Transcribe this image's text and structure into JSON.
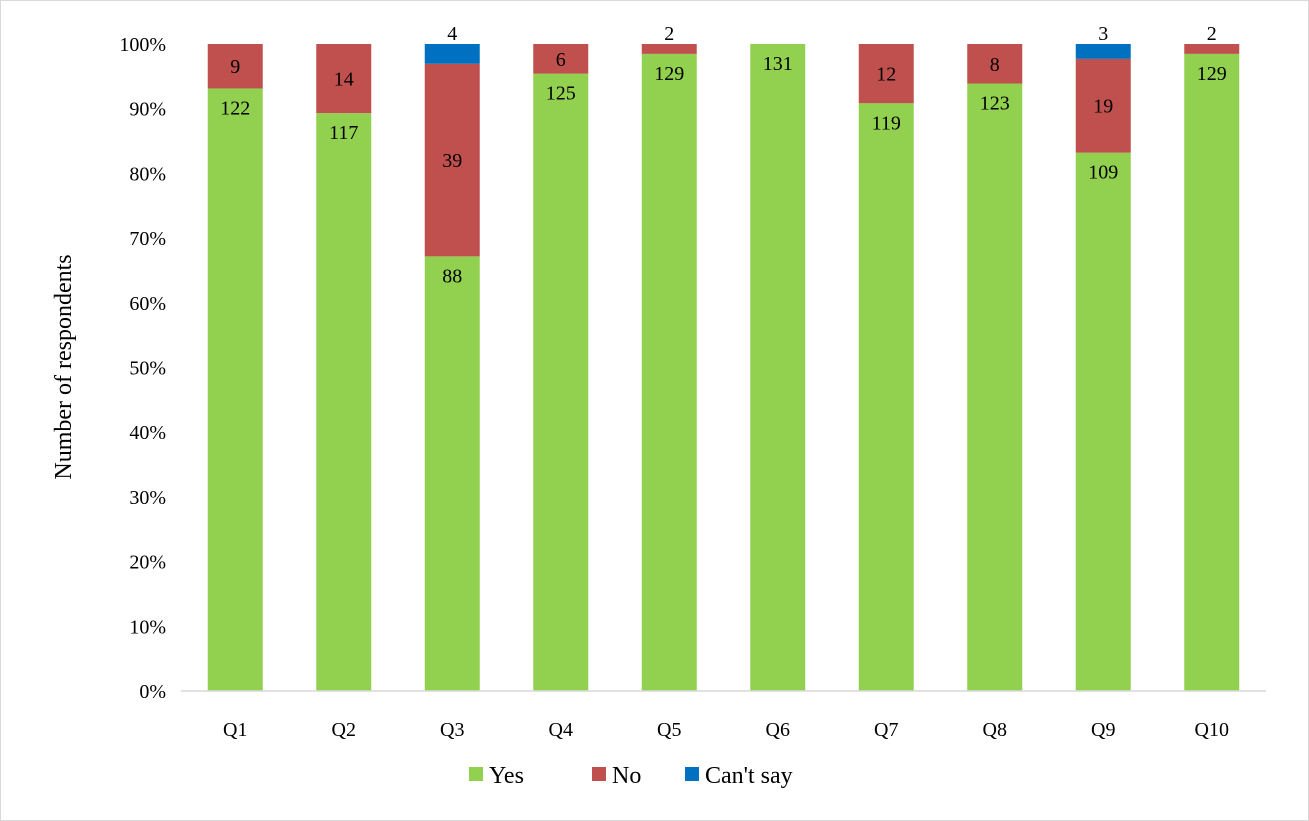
{
  "chart_data": {
    "type": "bar",
    "stacked": true,
    "normalized": true,
    "categories": [
      "Q1",
      "Q2",
      "Q3",
      "Q4",
      "Q5",
      "Q6",
      "Q7",
      "Q8",
      "Q9",
      "Q10"
    ],
    "series": [
      {
        "name": "Yes",
        "color": "#92d050",
        "values": [
          122,
          117,
          88,
          125,
          129,
          131,
          119,
          123,
          109,
          129
        ]
      },
      {
        "name": "No",
        "color": "#c0504d",
        "values": [
          9,
          14,
          39,
          6,
          2,
          0,
          12,
          8,
          19,
          2
        ]
      },
      {
        "name": "Can't say",
        "color": "#0070c0",
        "values": [
          0,
          0,
          4,
          0,
          0,
          0,
          0,
          0,
          3,
          0
        ]
      }
    ],
    "data_labels": {
      "Yes": [
        "122",
        "117",
        "88",
        "125",
        "129",
        "131",
        "119",
        "123",
        "109",
        "129"
      ],
      "No": [
        "9",
        "14",
        "39",
        "6",
        "2",
        "",
        "12",
        "8",
        "19",
        "2"
      ],
      "Can't say": [
        "",
        "",
        "4",
        "",
        "",
        "",
        "",
        "",
        "3",
        ""
      ]
    },
    "title": "",
    "xlabel": "",
    "ylabel": "Number of respondents",
    "yticks": [
      "0%",
      "10%",
      "20%",
      "30%",
      "40%",
      "50%",
      "60%",
      "70%",
      "80%",
      "90%",
      "100%"
    ],
    "ylim": [
      0,
      100
    ],
    "grid": false,
    "legend_position": "bottom"
  }
}
